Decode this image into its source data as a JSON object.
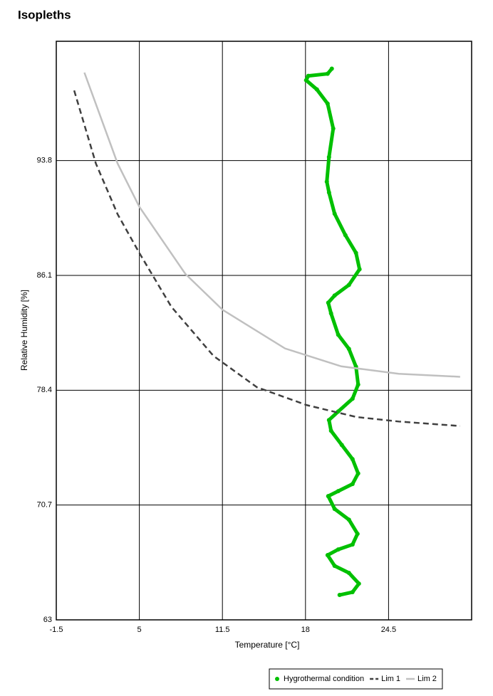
{
  "chart_data": {
    "type": "scatter",
    "title": "Isopleths",
    "x_label": "Temperature [°C]",
    "y_label": "Relative Humidity [%]",
    "xlim": [
      -1.5,
      31
    ],
    "ylim": [
      63,
      101.8
    ],
    "xticks": [
      -1.5,
      5,
      11.5,
      18,
      24.5
    ],
    "yticks": [
      63,
      70.7,
      78.4,
      86.1,
      93.8
    ],
    "grid": true,
    "legend": "bottom-right",
    "series": [
      {
        "name": "Hygrothermal condition",
        "color": "#00c000",
        "style": "points",
        "x": [
          20.06,
          19.73,
          18.22,
          18.05,
          18.89,
          19.73,
          20.17,
          19.84,
          19.67,
          19.84,
          20.28,
          21.12,
          21.95,
          22.23,
          21.4,
          20.28,
          19.78,
          20.0,
          20.56,
          21.4,
          21.95,
          22.12,
          21.68,
          20.56,
          19.84,
          20.0,
          20.84,
          21.68,
          22.12,
          21.68,
          20.56,
          19.78,
          20.28,
          21.4,
          22.07,
          21.68,
          20.56,
          19.73,
          20.28,
          21.4,
          22.18,
          21.68,
          20.67
        ],
        "values": [
          99.96,
          99.62,
          99.48,
          99.19,
          98.57,
          97.62,
          95.95,
          94.04,
          92.38,
          91.66,
          90.23,
          88.8,
          87.61,
          86.51,
          85.46,
          84.75,
          84.27,
          83.55,
          82.12,
          81.17,
          79.98,
          78.78,
          77.83,
          76.97,
          76.4,
          75.68,
          74.73,
          73.78,
          72.82,
          72.11,
          71.63,
          71.3,
          70.44,
          69.72,
          68.77,
          68.05,
          67.72,
          67.34,
          66.62,
          66.15,
          65.43,
          64.86,
          64.67
        ]
      },
      {
        "name": "Lim 1",
        "color": "#404040",
        "style": "dashed",
        "x": [
          -0.1,
          1.6,
          3.3,
          5,
          7.5,
          10.8,
          14.2,
          18.1,
          22,
          25.3,
          30.1
        ],
        "values": [
          98.5,
          93.6,
          90.2,
          87.6,
          84.0,
          80.7,
          78.6,
          77.4,
          76.6,
          76.3,
          76.0
        ]
      },
      {
        "name": "Lim 2",
        "color": "#c0c0c0",
        "style": "solid",
        "x": [
          0.7,
          3.3,
          5,
          8.6,
          11.5,
          16.4,
          20.8,
          25.3,
          30.1
        ],
        "values": [
          99.7,
          93.6,
          90.7,
          86.2,
          83.8,
          81.2,
          80.0,
          79.5,
          79.3
        ]
      }
    ]
  }
}
